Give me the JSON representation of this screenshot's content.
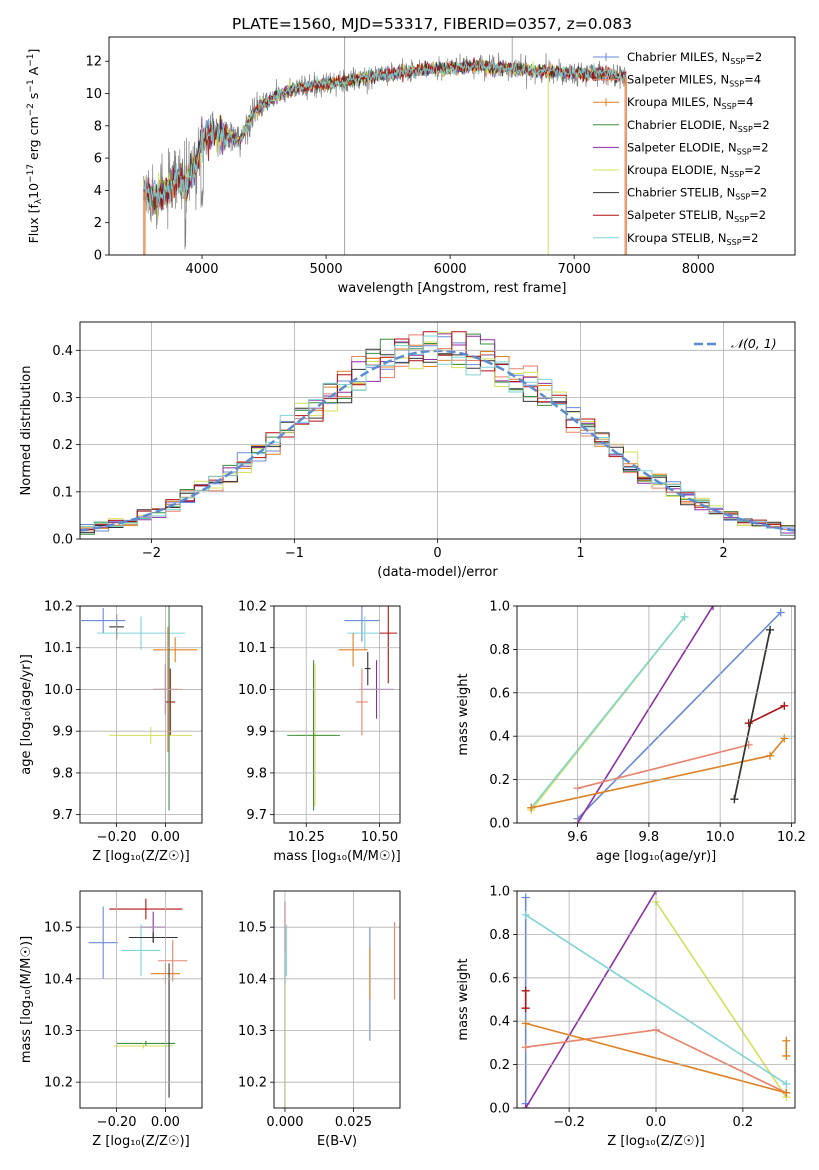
{
  "figure_title": "PLATE=1560, MJD=53317, FIBERID=0357, z=0.083",
  "models": [
    {
      "name": "Chabrier MILES",
      "nssp": "2",
      "color": "#6a89d8"
    },
    {
      "name": "Salpeter MILES",
      "nssp": "4",
      "color": "#e8826a"
    },
    {
      "name": "Kroupa MILES",
      "nssp": "4",
      "color": "#e08020"
    },
    {
      "name": "Chabrier ELODIE",
      "nssp": "2",
      "color": "#3e8f3e"
    },
    {
      "name": "Salpeter ELODIE",
      "nssp": "2",
      "color": "#8e2ea3"
    },
    {
      "name": "Kroupa ELODIE",
      "nssp": "2",
      "color": "#d4e05a"
    },
    {
      "name": "Chabrier STELIB",
      "nssp": "2",
      "color": "#333333"
    },
    {
      "name": "Salpeter STELIB",
      "nssp": "2",
      "color": "#b01010"
    },
    {
      "name": "Kroupa STELIB",
      "nssp": "2",
      "color": "#7fd4d8"
    }
  ],
  "chart_data": [
    {
      "id": "spectrum",
      "type": "line",
      "title": "PLATE=1560, MJD=53317, FIBERID=0357, z=0.083",
      "xlabel": "wavelength [Angstrom, rest frame]",
      "ylabel_pre": "Flux [f",
      "ylabel_sub": "λ",
      "ylabel_mid": "10",
      "ylabel_sup1": "−17",
      "ylabel_post": " erg cm",
      "ylabel_sup2": "−2",
      "ylabel_s": " s",
      "ylabel_sup3": "−1",
      "ylabel_a": " A",
      "ylabel_sup4": "−1",
      "ylabel_end": "]",
      "xlim": [
        3250,
        8780
      ],
      "ylim": [
        0,
        13.5
      ],
      "xticks": [
        4000,
        5000,
        6000,
        7000,
        8000
      ],
      "yticks": [
        0,
        2,
        4,
        6,
        8,
        10,
        12
      ],
      "grid": false,
      "legend": "upper-right",
      "continuum": [
        [
          3530,
          4.0
        ],
        [
          3600,
          3.6
        ],
        [
          3700,
          3.8
        ],
        [
          3800,
          4.6
        ],
        [
          3880,
          4.3
        ],
        [
          3950,
          5.6
        ],
        [
          4000,
          7.2
        ],
        [
          4100,
          7.6
        ],
        [
          4200,
          7.4
        ],
        [
          4300,
          7.0
        ],
        [
          4400,
          8.6
        ],
        [
          4500,
          9.4
        ],
        [
          4600,
          9.8
        ],
        [
          4700,
          10.2
        ],
        [
          4800,
          10.4
        ],
        [
          4900,
          10.5
        ],
        [
          5000,
          10.6
        ],
        [
          5100,
          10.7
        ],
        [
          5200,
          10.8
        ],
        [
          5300,
          11.0
        ],
        [
          5400,
          11.1
        ],
        [
          5500,
          11.2
        ],
        [
          5600,
          11.3
        ],
        [
          5700,
          11.4
        ],
        [
          5800,
          11.5
        ],
        [
          5900,
          11.5
        ],
        [
          6000,
          11.6
        ],
        [
          6100,
          11.6
        ],
        [
          6200,
          11.7
        ],
        [
          6300,
          11.6
        ],
        [
          6400,
          11.6
        ],
        [
          6500,
          11.5
        ],
        [
          6600,
          11.5
        ],
        [
          6700,
          11.4
        ],
        [
          6800,
          11.4
        ],
        [
          6900,
          11.3
        ],
        [
          7000,
          11.3
        ],
        [
          7100,
          11.2
        ],
        [
          7200,
          11.3
        ],
        [
          7300,
          11.2
        ],
        [
          7420,
          11.0
        ]
      ]
    },
    {
      "id": "residuals",
      "type": "histogram",
      "xlabel": "(data-model)/error",
      "ylabel": "Normed distribution",
      "xlim": [
        -2.5,
        2.5
      ],
      "ylim": [
        0,
        0.46
      ],
      "xticks": [
        -2,
        -1,
        0,
        1,
        2
      ],
      "yticks": [
        0.0,
        0.1,
        0.2,
        0.3,
        0.4
      ],
      "grid": true,
      "legend": "upper-right",
      "legend_label": "𝒩(0, 1)",
      "reference_curve": "normal(0,1)"
    },
    {
      "id": "age_vs_Z",
      "type": "errorbar",
      "xlabel": "Z [log₁₀(Z/Z☉)]",
      "ylabel": "age  [log₁₀(age/yr)]",
      "xlim": [
        -0.35,
        0.15
      ],
      "ylim": [
        9.68,
        10.2
      ],
      "xticks": [
        -0.2,
        0.0
      ],
      "yticks": [
        9.7,
        9.8,
        9.9,
        10.0,
        10.1,
        10.2
      ],
      "grid": true,
      "points": [
        {
          "model": 0,
          "x": -0.255,
          "y": 10.165,
          "xerr": 0.09,
          "yerr": 0.03
        },
        {
          "model": 8,
          "x": -0.1,
          "y": 10.135,
          "xerr": 0.18,
          "yerr": 0.04
        },
        {
          "model": 2,
          "x": 0.04,
          "y": 10.095,
          "xerr": 0.09,
          "yerr": 0.03
        },
        {
          "model": 4,
          "x": 0.0,
          "y": 10.0,
          "xerr": 0.05,
          "yerr": 0.06
        },
        {
          "model": 1,
          "x": 0.01,
          "y": 10.0,
          "xerr": 0.06,
          "yerr": 0.15
        },
        {
          "model": 7,
          "x": 0.02,
          "y": 9.97,
          "xerr": 0.02,
          "yerr": 0.08
        },
        {
          "model": 5,
          "x": -0.06,
          "y": 9.89,
          "xerr": 0.17,
          "yerr": 0.02
        },
        {
          "model": 3,
          "x": 0.015,
          "y": 9.97,
          "xerr": 0.005,
          "yerr": 0.26
        },
        {
          "model": 6,
          "x": -0.2,
          "y": 10.15,
          "xerr": 0.03,
          "yerr": 0.03
        }
      ]
    },
    {
      "id": "age_vs_mass",
      "type": "errorbar",
      "xlabel": "mass [log₁₀(M/M☉)]",
      "ylabel": "",
      "xlim": [
        10.14,
        10.57
      ],
      "ylim": [
        9.68,
        10.2
      ],
      "xticks": [
        10.25,
        10.5
      ],
      "yticks": [
        9.7,
        9.8,
        9.9,
        10.0,
        10.1,
        10.2
      ],
      "grid": true,
      "points": [
        {
          "model": 0,
          "x": 10.44,
          "y": 10.165,
          "xerr": 0.06,
          "yerr": 0.05
        },
        {
          "model": 8,
          "x": 10.45,
          "y": 10.135,
          "xerr": 0.06,
          "yerr": 0.04
        },
        {
          "model": 2,
          "x": 10.41,
          "y": 10.095,
          "xerr": 0.05,
          "yerr": 0.04
        },
        {
          "model": 7,
          "x": 10.53,
          "y": 10.135,
          "xerr": 0.03,
          "yerr": 0.12
        },
        {
          "model": 4,
          "x": 10.49,
          "y": 10.0,
          "xerr": 0.06,
          "yerr": 0.07
        },
        {
          "model": 1,
          "x": 10.44,
          "y": 9.97,
          "xerr": 0.02,
          "yerr": 0.08
        },
        {
          "model": 5,
          "x": 10.28,
          "y": 9.89,
          "xerr": 0.07,
          "yerr": 0.17
        },
        {
          "model": 3,
          "x": 10.275,
          "y": 9.89,
          "xerr": 0.09,
          "yerr": 0.18
        },
        {
          "model": 6,
          "x": 10.46,
          "y": 10.05,
          "xerr": 0.01,
          "yerr": 0.04
        }
      ]
    },
    {
      "id": "weight_vs_age",
      "type": "line",
      "xlabel": "age  [log₁₀(age/yr)]",
      "ylabel": "mass weight",
      "xlim": [
        9.43,
        10.21
      ],
      "ylim": [
        0,
        1.0
      ],
      "xticks": [
        9.6,
        9.8,
        10.0,
        10.2
      ],
      "yticks": [
        0.0,
        0.2,
        0.4,
        0.6,
        0.8,
        1.0
      ],
      "grid": true,
      "series": [
        {
          "model": 0,
          "points": [
            [
              9.6,
              0.02
            ],
            [
              10.17,
              0.97
            ]
          ]
        },
        {
          "model": 5,
          "points": [
            [
              9.47,
              0.06
            ],
            [
              9.9,
              0.95
            ]
          ]
        },
        {
          "model": 8,
          "points": [
            [
              9.47,
              0.07
            ],
            [
              9.9,
              0.95
            ]
          ]
        },
        {
          "model": 4,
          "points": [
            [
              9.6,
              0.0
            ],
            [
              9.98,
              1.0
            ]
          ]
        },
        {
          "model": 1,
          "points": [
            [
              9.6,
              0.16
            ],
            [
              10.08,
              0.36
            ]
          ]
        },
        {
          "model": 2,
          "points": [
            [
              9.47,
              0.07
            ],
            [
              10.14,
              0.31
            ],
            [
              10.18,
              0.39
            ]
          ]
        },
        {
          "model": 7,
          "points": [
            [
              10.08,
              0.46
            ],
            [
              10.18,
              0.54
            ]
          ]
        },
        {
          "model": 3,
          "points": [
            [
              10.04,
              0.11
            ],
            [
              10.14,
              0.89
            ]
          ]
        },
        {
          "model": 6,
          "points": [
            [
              10.04,
              0.11
            ],
            [
              10.14,
              0.89
            ]
          ]
        }
      ]
    },
    {
      "id": "mass_vs_Z",
      "type": "errorbar",
      "xlabel": "Z [log₁₀(Z/Z☉)]",
      "ylabel": "mass [log₁₀(M/M☉)]",
      "xlim": [
        -0.35,
        0.15
      ],
      "ylim": [
        10.15,
        10.57
      ],
      "xticks": [
        -0.2,
        0.0
      ],
      "yticks": [
        10.2,
        10.3,
        10.4,
        10.5
      ],
      "grid": true,
      "points": [
        {
          "model": 0,
          "x": -0.255,
          "y": 10.47,
          "xerr": 0.06,
          "yerr": 0.07
        },
        {
          "model": 8,
          "x": -0.1,
          "y": 10.455,
          "xerr": 0.08,
          "yerr": 0.05
        },
        {
          "model": 7,
          "x": -0.08,
          "y": 10.535,
          "xerr": 0.15,
          "yerr": 0.02
        },
        {
          "model": 4,
          "x": -0.05,
          "y": 10.5,
          "xerr": 0.05,
          "yerr": 0.03
        },
        {
          "model": 6,
          "x": -0.05,
          "y": 10.48,
          "xerr": 0.1,
          "yerr": 0.01
        },
        {
          "model": 1,
          "x": 0.03,
          "y": 10.435,
          "xerr": 0.06,
          "yerr": 0.04
        },
        {
          "model": 2,
          "x": 0.0,
          "y": 10.41,
          "xerr": 0.06,
          "yerr": 0.02
        },
        {
          "model": 3,
          "x": -0.08,
          "y": 10.275,
          "xerr": 0.12,
          "yerr": 0.005
        },
        {
          "model": 5,
          "x": -0.09,
          "y": 10.27,
          "xerr": 0.12,
          "yerr": 0.005
        },
        {
          "model": 6,
          "x": 0.015,
          "y": 10.3,
          "xerr": 0.005,
          "yerr": 0.13
        }
      ]
    },
    {
      "id": "mass_vs_ebv",
      "type": "errorbar",
      "xlabel": "E(B-V)",
      "ylabel": "",
      "xlim": [
        -0.004,
        0.042
      ],
      "ylim": [
        10.15,
        10.57
      ],
      "xticks": [
        0.0,
        0.025
      ],
      "yticks": [
        10.2,
        10.3,
        10.4,
        10.5
      ],
      "grid": true,
      "points": [
        {
          "model": 7,
          "x": 0.0,
          "y": 10.5,
          "xerr": 0.0,
          "yerr": 0.05
        },
        {
          "model": 3,
          "x": 0.0,
          "y": 10.3,
          "xerr": 0.0,
          "yerr": 0.15
        },
        {
          "model": 5,
          "x": 0.0,
          "y": 10.27,
          "xerr": 0.0,
          "yerr": 0.12
        },
        {
          "model": 0,
          "x": 0.031,
          "y": 10.39,
          "xerr": 0.0,
          "yerr": 0.11
        },
        {
          "model": 2,
          "x": 0.031,
          "y": 10.41,
          "xerr": 0.0,
          "yerr": 0.05
        },
        {
          "model": 1,
          "x": 0.04,
          "y": 10.435,
          "xerr": 0.0,
          "yerr": 0.075
        },
        {
          "model": 8,
          "x": 0.0005,
          "y": 10.455,
          "xerr": 0.0,
          "yerr": 0.05
        }
      ]
    },
    {
      "id": "weight_vs_Z",
      "type": "line",
      "xlabel": "Z [log₁₀(Z/Z☉)]",
      "ylabel": "mass weight",
      "xlim": [
        -0.32,
        0.32
      ],
      "ylim": [
        0,
        1.0
      ],
      "xticks": [
        -0.2,
        0.0,
        0.2
      ],
      "yticks": [
        0.0,
        0.2,
        0.4,
        0.6,
        0.8,
        1.0
      ],
      "grid": true,
      "series": [
        {
          "model": 0,
          "points": [
            [
              -0.3,
              0.97
            ],
            [
              -0.3,
              0.02
            ]
          ]
        },
        {
          "model": 4,
          "points": [
            [
              -0.3,
              0.0
            ],
            [
              0.0,
              1.0
            ]
          ]
        },
        {
          "model": 5,
          "points": [
            [
              0.0,
              0.95
            ],
            [
              0.3,
              0.05
            ]
          ]
        },
        {
          "model": 8,
          "points": [
            [
              -0.3,
              0.89
            ],
            [
              0.3,
              0.11
            ]
          ]
        },
        {
          "model": 1,
          "points": [
            [
              -0.3,
              0.28
            ],
            [
              0.0,
              0.36
            ],
            [
              0.3,
              0.07
            ]
          ]
        },
        {
          "model": 2,
          "points": [
            [
              -0.3,
              0.39
            ],
            [
              0.3,
              0.07
            ]
          ]
        },
        {
          "model": 7,
          "points": [
            [
              -0.3,
              0.54
            ],
            [
              -0.3,
              0.46
            ]
          ]
        },
        {
          "model": 2,
          "points": [
            [
              0.3,
              0.31
            ],
            [
              0.3,
              0.24
            ]
          ]
        }
      ]
    }
  ]
}
